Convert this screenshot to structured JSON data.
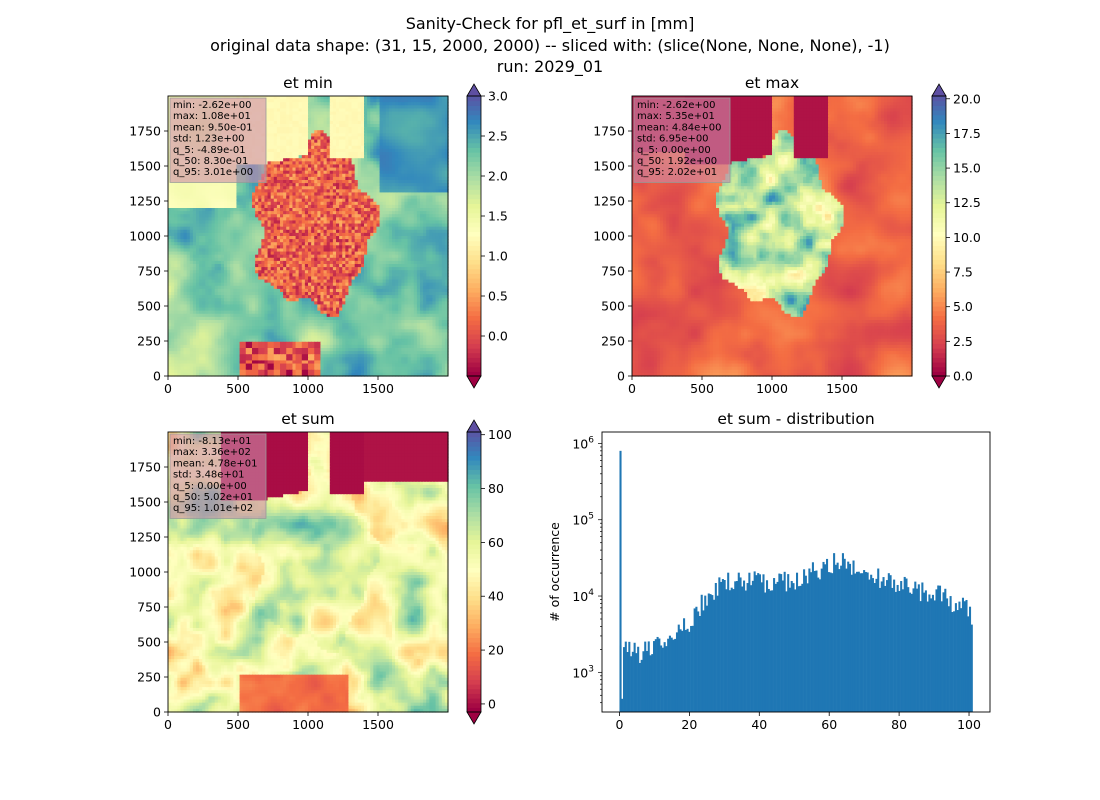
{
  "figure": {
    "title_lines": [
      "Sanity-Check for pfl_et_surf in [mm]",
      "original data shape: (31, 15, 2000, 2000) -- sliced with: (slice(None, None, None), -1)",
      "run: 2029_01"
    ]
  },
  "chart_data": [
    {
      "type": "heatmap",
      "title": "et min",
      "xlim": [
        0,
        2000
      ],
      "ylim": [
        0,
        2000
      ],
      "xticks": [
        "0",
        "500",
        "1000",
        "1500"
      ],
      "yticks": [
        "0",
        "250",
        "500",
        "750",
        "1000",
        "1250",
        "1500",
        "1750"
      ],
      "colorbar": {
        "cmap": "Spectral",
        "range": [
          -0.5,
          3.0
        ],
        "ticks": [
          "0.0",
          "0.5",
          "1.0",
          "1.5",
          "2.0",
          "2.5",
          "3.0"
        ],
        "extend": "both"
      },
      "stats": [
        "min: -2.62e+00",
        "max: 1.08e+01",
        "mean: 9.50e-01",
        "std: 1.23e+00",
        "q_5: -4.89e-01",
        "q_50: 8.30e-01",
        "q_95: 3.01e+00"
      ]
    },
    {
      "type": "heatmap",
      "title": "et max",
      "xlim": [
        0,
        2000
      ],
      "ylim": [
        0,
        2000
      ],
      "xticks": [
        "0",
        "500",
        "1000",
        "1500"
      ],
      "yticks": [
        "0",
        "250",
        "500",
        "750",
        "1000",
        "1250",
        "1500",
        "1750"
      ],
      "colorbar": {
        "cmap": "Spectral",
        "range": [
          0,
          20.2
        ],
        "ticks": [
          "0.0",
          "2.5",
          "5.0",
          "7.5",
          "10.0",
          "12.5",
          "15.0",
          "17.5",
          "20.0"
        ],
        "extend": "both"
      },
      "stats": [
        "min: -2.62e+00",
        "max: 5.35e+01",
        "mean: 4.84e+00",
        "std: 6.95e+00",
        "q_5: 0.00e+00",
        "q_50: 1.92e+00",
        "q_95: 2.02e+01"
      ]
    },
    {
      "type": "heatmap",
      "title": "et sum",
      "xlim": [
        0,
        2000
      ],
      "ylim": [
        0,
        2000
      ],
      "xticks": [
        "0",
        "500",
        "1000",
        "1500"
      ],
      "yticks": [
        "0",
        "250",
        "500",
        "750",
        "1000",
        "1250",
        "1500",
        "1750"
      ],
      "colorbar": {
        "cmap": "Spectral",
        "range": [
          -3,
          101
        ],
        "ticks": [
          "0",
          "20",
          "40",
          "60",
          "80",
          "100"
        ],
        "extend": "both"
      },
      "stats": [
        "min: -8.13e+01",
        "max: 3.36e+02",
        "mean: 4.78e+01",
        "std: 3.48e+01",
        "q_5: 0.00e+00",
        "q_50: 5.02e+01",
        "q_95: 1.01e+02"
      ]
    },
    {
      "type": "bar",
      "title": "et sum - distribution",
      "xlabel": "",
      "ylabel": "# of occurrence",
      "yscale": "log",
      "xlim": [
        -5,
        106
      ],
      "ylim_log10": [
        2.48,
        6.15
      ],
      "xticks": [
        "0",
        "20",
        "40",
        "60",
        "80",
        "100"
      ],
      "yticks": [
        "10^3",
        "10^4",
        "10^5",
        "10^6"
      ],
      "color": "#1f77b4",
      "bins": {
        "start": 0,
        "end": 101,
        "count": 200
      },
      "spike": {
        "x": 0,
        "value": 800000
      },
      "profile_x": [
        0,
        1,
        3,
        6,
        10,
        14,
        18,
        20,
        22,
        24,
        26,
        30,
        35,
        40,
        45,
        50,
        55,
        60,
        62,
        64,
        66,
        70,
        75,
        80,
        85,
        90,
        95,
        100,
        101
      ],
      "profile_y": [
        2600,
        2000,
        2200,
        1800,
        2000,
        2600,
        3600,
        4500,
        6000,
        8500,
        11000,
        15000,
        16000,
        15500,
        15000,
        16000,
        20000,
        24000,
        28000,
        29000,
        26000,
        22000,
        17000,
        15000,
        12000,
        11000,
        8500,
        6500,
        5500
      ]
    }
  ]
}
